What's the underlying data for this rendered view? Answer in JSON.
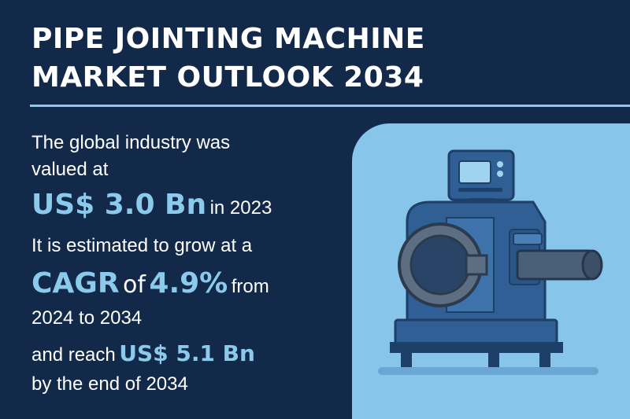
{
  "title": {
    "line1": "PIPE JOINTING MACHINE",
    "line2": "MARKET OUTLOOK 2034"
  },
  "body": {
    "line1": "The global industry was",
    "line2": "valued at",
    "value_2023": "US$ 3.0 Bn",
    "value_2023_suffix": "in 2023",
    "growth_intro": "It is estimated to grow at a",
    "cagr_label": "CAGR",
    "cagr_of": "of",
    "cagr_value": "4.9%",
    "cagr_from": "from",
    "period": "2024 to 2034",
    "reach_prefix": "and reach",
    "value_2034": "US$ 5.1 Bn",
    "end_text": "by the end of 2034"
  },
  "colors": {
    "background": "#13294a",
    "accent": "#8ccaeb",
    "panel": "#87c6ea",
    "machine": "#2f5f94"
  },
  "illustration": {
    "icon": "pipe-jointing-machine-icon"
  }
}
